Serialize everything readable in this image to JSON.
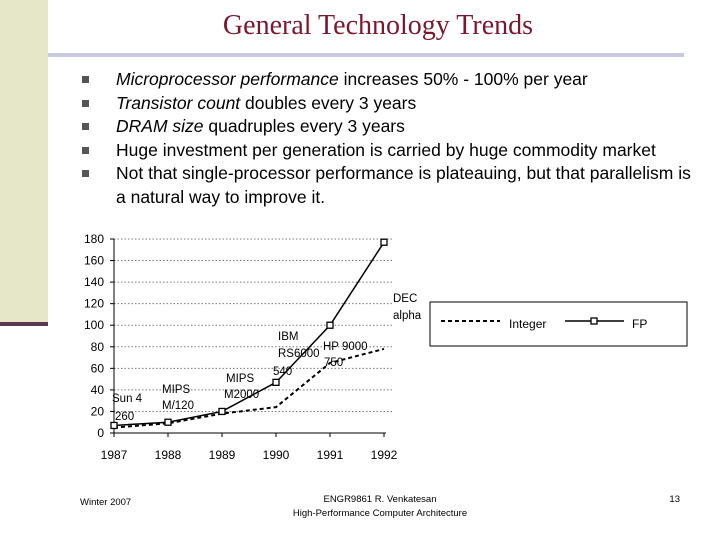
{
  "slide": {
    "title": "General Technology Trends",
    "bullets": [
      {
        "italic": "Microprocessor performance",
        "rest": " increases 50% - 100% per year"
      },
      {
        "italic": "Transistor count",
        "rest": " doubles every 3 years"
      },
      {
        "italic": "DRAM size",
        "rest": " quadruples every 3 years"
      },
      {
        "italic": "",
        "rest": "Huge investment per generation is carried by huge commodity market"
      },
      {
        "italic": "",
        "rest": "Not that single-processor performance is plateauing, but that parallelism is a natural way to improve it."
      }
    ],
    "footer_left": "Winter 2007",
    "footer_center_1": "ENGR9861   R. Venkatesan",
    "footer_center_2": "High-Performance Computer Architecture",
    "page_number": "13"
  },
  "chart_data": {
    "type": "line",
    "x": [
      1987,
      1988,
      1989,
      1990,
      1991,
      1992
    ],
    "ylim": [
      0,
      180
    ],
    "yticks": [
      0,
      20,
      40,
      60,
      80,
      100,
      120,
      140,
      160,
      180
    ],
    "grid": "horizontal dotted",
    "legend_position": "top-right",
    "series": [
      {
        "name": "Integer",
        "style": "dashed",
        "values": [
          5,
          9,
          18,
          24,
          65,
          78
        ]
      },
      {
        "name": "FP",
        "style": "solid-square-markers",
        "values": [
          7,
          10,
          20,
          47,
          100,
          177
        ]
      }
    ],
    "annotations": [
      {
        "text": "Sun 4",
        "x": 1987
      },
      {
        "text": "260",
        "x": 1987
      },
      {
        "text": "MIPS",
        "x": 1988
      },
      {
        "text": "M/120",
        "x": 1988
      },
      {
        "text": "MIPS",
        "x": 1989
      },
      {
        "text": "M2000",
        "x": 1989
      },
      {
        "text": "IBM",
        "x": 1990
      },
      {
        "text": "RS6000",
        "x": 1990
      },
      {
        "text": "540",
        "x": 1990
      },
      {
        "text": "HP 9000",
        "x": 1991
      },
      {
        "text": "750",
        "x": 1991
      },
      {
        "text": "DEC",
        "x": 1992
      },
      {
        "text": "alpha",
        "x": 1992
      }
    ],
    "colors": {
      "line": "#000000",
      "grid": "#7a7a7a"
    }
  }
}
